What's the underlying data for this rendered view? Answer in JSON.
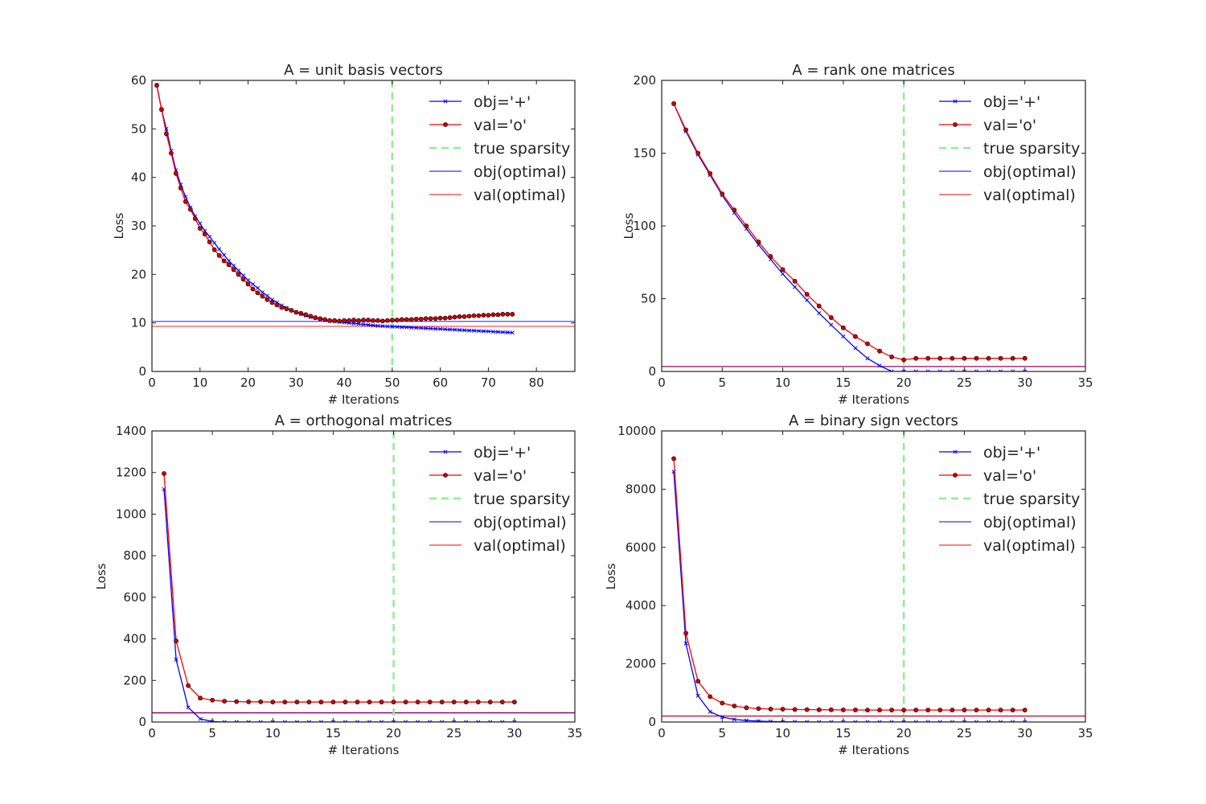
{
  "figure": {
    "background": "#ffffff"
  },
  "styles": {
    "obj_color": "#0000ff",
    "val_color": "#ff0000",
    "sparsity_color": "#90ee90",
    "optimal_overlap_color": "#7a3f9f",
    "axis_color": "#222222"
  },
  "chart_data": [
    {
      "type": "line",
      "title": "A = unit basis vectors",
      "xlabel": "# Iterations",
      "ylabel": "Loss",
      "xlim": [
        0,
        88
      ],
      "ylim": [
        0,
        60
      ],
      "xticks": [
        0,
        10,
        20,
        30,
        40,
        50,
        60,
        70,
        80
      ],
      "yticks": [
        0,
        10,
        20,
        30,
        40,
        50,
        60
      ],
      "true_sparsity": 50,
      "optimal": {
        "obj": 10.3,
        "val": 9.3
      },
      "legend": [
        "obj='+'",
        "val='o'",
        "true sparsity",
        "obj(optimal)",
        "val(optimal)"
      ],
      "legend_loc": "upper right",
      "series": [
        {
          "name": "obj='+'",
          "x": [
            1,
            2,
            3,
            4,
            5,
            6,
            7,
            8,
            9,
            10,
            11,
            12,
            13,
            14,
            15,
            16,
            17,
            18,
            19,
            20,
            21,
            22,
            23,
            24,
            25,
            26,
            27,
            28,
            29,
            30,
            31,
            32,
            33,
            34,
            35,
            36,
            37,
            38,
            39,
            40,
            41,
            42,
            43,
            44,
            45,
            46,
            47,
            48,
            49,
            50,
            51,
            52,
            53,
            54,
            55,
            56,
            57,
            58,
            59,
            60,
            61,
            62,
            63,
            64,
            65,
            66,
            67,
            68,
            69,
            70,
            71,
            72,
            73,
            74,
            75
          ],
          "values": [
            59.0,
            54.0,
            50.0,
            45.5,
            41.5,
            38.5,
            36.0,
            33.8,
            32.0,
            30.5,
            29.0,
            27.8,
            26.5,
            25.2,
            24.0,
            22.8,
            21.8,
            20.8,
            19.8,
            18.8,
            18.0,
            17.2,
            16.3,
            15.6,
            14.8,
            14.2,
            13.6,
            13.1,
            12.6,
            12.2,
            11.8,
            11.5,
            11.2,
            11.0,
            10.8,
            10.6,
            10.4,
            10.3,
            10.2,
            10.1,
            10.0,
            9.9,
            9.8,
            9.7,
            9.6,
            9.5,
            9.4,
            9.35,
            9.3,
            9.25,
            9.2,
            9.15,
            9.1,
            9.05,
            9.0,
            8.95,
            8.9,
            8.85,
            8.8,
            8.75,
            8.7,
            8.65,
            8.6,
            8.55,
            8.5,
            8.45,
            8.4,
            8.35,
            8.3,
            8.25,
            8.2,
            8.15,
            8.1,
            8.05,
            8.0
          ]
        },
        {
          "name": "val='o'",
          "x": [
            1,
            2,
            3,
            4,
            5,
            6,
            7,
            8,
            9,
            10,
            11,
            12,
            13,
            14,
            15,
            16,
            17,
            18,
            19,
            20,
            21,
            22,
            23,
            24,
            25,
            26,
            27,
            28,
            29,
            30,
            31,
            32,
            33,
            34,
            35,
            36,
            37,
            38,
            39,
            40,
            41,
            42,
            43,
            44,
            45,
            46,
            47,
            48,
            49,
            50,
            51,
            52,
            53,
            54,
            55,
            56,
            57,
            58,
            59,
            60,
            61,
            62,
            63,
            64,
            65,
            66,
            67,
            68,
            69,
            70,
            71,
            72,
            73,
            74,
            75
          ],
          "values": [
            59.0,
            54.0,
            49.0,
            45.0,
            40.8,
            37.8,
            35.0,
            33.4,
            31.5,
            29.5,
            28.3,
            26.7,
            25.1,
            23.9,
            22.8,
            22.0,
            21.0,
            20.0,
            19.0,
            18.0,
            17.0,
            16.2,
            15.5,
            14.8,
            14.2,
            13.7,
            13.2,
            12.9,
            12.6,
            12.2,
            12.0,
            11.7,
            11.4,
            11.1,
            10.9,
            10.7,
            10.5,
            10.5,
            10.4,
            10.5,
            10.5,
            10.6,
            10.5,
            10.6,
            10.6,
            10.5,
            10.5,
            10.4,
            10.5,
            10.6,
            10.6,
            10.7,
            10.7,
            10.7,
            10.8,
            10.8,
            10.9,
            10.9,
            10.9,
            11.0,
            11.0,
            11.1,
            11.2,
            11.3,
            11.3,
            11.4,
            11.5,
            11.5,
            11.6,
            11.6,
            11.7,
            11.7,
            11.8,
            11.8,
            11.8
          ]
        }
      ]
    },
    {
      "type": "line",
      "title": "A = rank one matrices",
      "xlabel": "# Iterations",
      "ylabel": "Loss",
      "xlim": [
        0,
        35
      ],
      "ylim": [
        0,
        200
      ],
      "xticks": [
        0,
        5,
        10,
        15,
        20,
        25,
        30,
        35
      ],
      "yticks": [
        0,
        50,
        100,
        150,
        200
      ],
      "true_sparsity": 20,
      "optimal": {
        "obj": 3.5,
        "val": 3.3
      },
      "legend": [
        "obj='+'",
        "val='o'",
        "true sparsity",
        "obj(optimal)",
        "val(optimal)"
      ],
      "legend_loc": "upper right",
      "series": [
        {
          "name": "obj='+'",
          "x": [
            1,
            2,
            3,
            4,
            5,
            6,
            7,
            8,
            9,
            10,
            11,
            12,
            13,
            14,
            15,
            16,
            17,
            18,
            19,
            20,
            21,
            22,
            23,
            24,
            25,
            26,
            27,
            28,
            29,
            30
          ],
          "values": [
            184,
            165,
            149,
            135,
            121,
            109,
            98,
            87,
            77,
            67,
            58,
            49,
            40,
            32,
            24,
            16,
            9,
            4,
            0,
            0,
            0,
            0,
            0,
            0,
            0,
            0,
            0,
            0,
            0,
            0
          ]
        },
        {
          "name": "val='o'",
          "x": [
            1,
            2,
            3,
            4,
            5,
            6,
            7,
            8,
            9,
            10,
            11,
            12,
            13,
            14,
            15,
            16,
            17,
            18,
            19,
            20,
            21,
            22,
            23,
            24,
            25,
            26,
            27,
            28,
            29,
            30
          ],
          "values": [
            184,
            166,
            150,
            136,
            122,
            111,
            100,
            89,
            79,
            70,
            62,
            53,
            45,
            37,
            30,
            24,
            19,
            14,
            10,
            8,
            9,
            9,
            9,
            9,
            9,
            9,
            9,
            9,
            9,
            9
          ]
        }
      ]
    },
    {
      "type": "line",
      "title": "A = orthogonal matrices",
      "xlabel": "# Iterations",
      "ylabel": "Loss",
      "xlim": [
        0,
        35
      ],
      "ylim": [
        0,
        1400
      ],
      "xticks": [
        0,
        5,
        10,
        15,
        20,
        25,
        30,
        35
      ],
      "yticks": [
        0,
        200,
        400,
        600,
        800,
        1000,
        1200,
        1400
      ],
      "true_sparsity": 20,
      "optimal": {
        "obj": 45,
        "val": 43
      },
      "legend": [
        "obj='+'",
        "val='o'",
        "true sparsity",
        "obj(optimal)",
        "val(optimal)"
      ],
      "legend_loc": "upper right",
      "series": [
        {
          "name": "obj='+'",
          "x": [
            1,
            2,
            3,
            4,
            5,
            6,
            7,
            8,
            9,
            10,
            11,
            12,
            13,
            14,
            15,
            16,
            17,
            18,
            19,
            20,
            21,
            22,
            23,
            24,
            25,
            26,
            27,
            28,
            29,
            30
          ],
          "values": [
            1120,
            300,
            70,
            15,
            2,
            0,
            0,
            0,
            0,
            0,
            0,
            0,
            0,
            0,
            0,
            0,
            0,
            0,
            0,
            0,
            0,
            0,
            0,
            0,
            0,
            0,
            0,
            0,
            0,
            0
          ]
        },
        {
          "name": "val='o'",
          "x": [
            1,
            2,
            3,
            4,
            5,
            6,
            7,
            8,
            9,
            10,
            11,
            12,
            13,
            14,
            15,
            16,
            17,
            18,
            19,
            20,
            21,
            22,
            23,
            24,
            25,
            26,
            27,
            28,
            29,
            30
          ],
          "values": [
            1195,
            390,
            175,
            115,
            105,
            100,
            98,
            97,
            97,
            96,
            96,
            96,
            96,
            96,
            96,
            96,
            96,
            96,
            96,
            96,
            96,
            96,
            96,
            96,
            96,
            96,
            96,
            96,
            96,
            96
          ]
        }
      ]
    },
    {
      "type": "line",
      "title": "A = binary sign vectors",
      "xlabel": "# Iterations",
      "ylabel": "Loss",
      "xlim": [
        0,
        35
      ],
      "ylim": [
        0,
        10000
      ],
      "xticks": [
        0,
        5,
        10,
        15,
        20,
        25,
        30,
        35
      ],
      "yticks": [
        0,
        2000,
        4000,
        6000,
        8000,
        10000
      ],
      "true_sparsity": 20,
      "optimal": {
        "obj": 210,
        "val": 200
      },
      "legend": [
        "obj='+'",
        "val='o'",
        "true sparsity",
        "obj(optimal)",
        "val(optimal)"
      ],
      "legend_loc": "upper right",
      "series": [
        {
          "name": "obj='+'",
          "x": [
            1,
            2,
            3,
            4,
            5,
            6,
            7,
            8,
            9,
            10,
            11,
            12,
            13,
            14,
            15,
            16,
            17,
            18,
            19,
            20,
            21,
            22,
            23,
            24,
            25,
            26,
            27,
            28,
            29,
            30
          ],
          "values": [
            8600,
            2700,
            900,
            350,
            170,
            90,
            50,
            30,
            15,
            8,
            4,
            2,
            0,
            0,
            0,
            0,
            0,
            0,
            0,
            0,
            0,
            0,
            0,
            0,
            0,
            0,
            0,
            0,
            0,
            0
          ]
        },
        {
          "name": "val='o'",
          "x": [
            1,
            2,
            3,
            4,
            5,
            6,
            7,
            8,
            9,
            10,
            11,
            12,
            13,
            14,
            15,
            16,
            17,
            18,
            19,
            20,
            21,
            22,
            23,
            24,
            25,
            26,
            27,
            28,
            29,
            30
          ],
          "values": [
            9050,
            3050,
            1400,
            870,
            650,
            550,
            490,
            460,
            445,
            440,
            430,
            425,
            420,
            420,
            415,
            415,
            410,
            410,
            410,
            410,
            410,
            410,
            410,
            410,
            410,
            410,
            410,
            410,
            410,
            410
          ]
        }
      ]
    }
  ]
}
